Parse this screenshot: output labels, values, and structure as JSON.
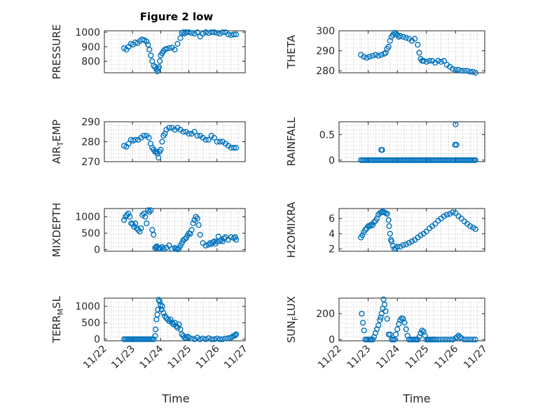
{
  "figure": {
    "title": "Figure 2 low",
    "background": "#ffffff",
    "marker_color": "#0072BD"
  },
  "chart_data": [
    {
      "type": "scatter",
      "marker": "circle",
      "ylabel": "PRESSURE",
      "ylabel_parts": [
        "PRESSURE"
      ],
      "xlim": [
        0,
        5
      ],
      "ylim": [
        720,
        1010
      ],
      "yticks": [
        800,
        900,
        1000
      ],
      "yticklabels": [
        "800",
        "900",
        "1000"
      ],
      "xticks": [
        0,
        1,
        2,
        3,
        4,
        5
      ],
      "xticklabels": [],
      "x": [
        0.7,
        0.78,
        0.86,
        0.94,
        1.02,
        1.1,
        1.18,
        1.26,
        1.34,
        1.42,
        1.5,
        1.55,
        1.6,
        1.65,
        1.7,
        1.75,
        1.8,
        1.85,
        1.88,
        1.91,
        1.94,
        1.97,
        2.0,
        2.05,
        2.1,
        2.15,
        2.2,
        2.3,
        2.4,
        2.5,
        2.6,
        2.7,
        2.75,
        2.8,
        2.85,
        2.9,
        3.0,
        3.1,
        3.2,
        3.3,
        3.4,
        3.5,
        3.6,
        3.7,
        3.8,
        3.9,
        4.0,
        4.1,
        4.2,
        4.3,
        4.4,
        4.5,
        4.6,
        4.68
      ],
      "y": [
        890,
        880,
        900,
        920,
        915,
        930,
        925,
        940,
        950,
        945,
        935,
        915,
        880,
        840,
        800,
        770,
        760,
        745,
        730,
        750,
        760,
        800,
        840,
        855,
        870,
        880,
        885,
        890,
        895,
        880,
        920,
        960,
        995,
        1000,
        990,
        1000,
        1000,
        995,
        990,
        1000,
        970,
        990,
        1000,
        995,
        1000,
        1000,
        995,
        990,
        1000,
        1000,
        985,
        980,
        985,
        985
      ]
    },
    {
      "type": "scatter",
      "marker": "circle",
      "ylabel": "THETA",
      "ylabel_parts": [
        "THETA"
      ],
      "xlim": [
        0,
        5
      ],
      "ylim": [
        279,
        300
      ],
      "yticks": [
        280,
        290,
        300
      ],
      "yticklabels": [
        "280",
        "290",
        "300"
      ],
      "xticks": [
        0,
        1,
        2,
        3,
        4,
        5
      ],
      "xticklabels": [],
      "x": [
        0.75,
        0.85,
        0.95,
        1.05,
        1.15,
        1.25,
        1.35,
        1.45,
        1.55,
        1.6,
        1.65,
        1.7,
        1.75,
        1.8,
        1.85,
        1.9,
        1.95,
        2.0,
        2.05,
        2.1,
        2.2,
        2.3,
        2.4,
        2.5,
        2.6,
        2.7,
        2.75,
        2.8,
        2.85,
        2.9,
        3.0,
        3.1,
        3.2,
        3.3,
        3.4,
        3.5,
        3.6,
        3.7,
        3.8,
        3.9,
        4.0,
        4.1,
        4.2,
        4.3,
        4.4,
        4.5,
        4.6,
        4.68
      ],
      "y": [
        288,
        287,
        286.5,
        287,
        287.5,
        288,
        287.5,
        288,
        288.5,
        289,
        291,
        292,
        295,
        297,
        298,
        299,
        298.5,
        298,
        297,
        297.5,
        297,
        296.5,
        296,
        295,
        296,
        293,
        289,
        286,
        285,
        285,
        284.5,
        285,
        285,
        284,
        285,
        284.5,
        285,
        283,
        282,
        281,
        280.5,
        280.5,
        280,
        280,
        280,
        279.5,
        279.5,
        279
      ]
    },
    {
      "type": "scatter",
      "marker": "circle",
      "ylabel": "AIR_TEMP",
      "ylabel_parts": [
        "AIR",
        "T",
        "EMP"
      ],
      "xlim": [
        0,
        5
      ],
      "ylim": [
        270,
        290
      ],
      "yticks": [
        270,
        280,
        290
      ],
      "yticklabels": [
        "270",
        "280",
        "290"
      ],
      "xticks": [
        0,
        1,
        2,
        3,
        4,
        5
      ],
      "xticklabels": [],
      "x": [
        0.7,
        0.78,
        0.86,
        0.94,
        1.02,
        1.1,
        1.2,
        1.3,
        1.4,
        1.5,
        1.58,
        1.64,
        1.7,
        1.75,
        1.8,
        1.85,
        1.88,
        1.92,
        1.96,
        2.0,
        2.05,
        2.1,
        2.15,
        2.2,
        2.3,
        2.4,
        2.5,
        2.6,
        2.7,
        2.8,
        2.9,
        3.0,
        3.1,
        3.2,
        3.3,
        3.4,
        3.5,
        3.6,
        3.7,
        3.8,
        3.9,
        4.0,
        4.1,
        4.2,
        4.3,
        4.4,
        4.5,
        4.6,
        4.68
      ],
      "y": [
        278,
        277.5,
        279,
        281,
        280.5,
        281,
        281,
        282,
        283,
        283,
        282,
        279,
        277,
        276,
        275,
        275,
        274,
        272,
        275,
        276,
        280,
        283,
        284,
        286,
        287,
        287,
        286,
        287,
        286,
        285,
        285,
        284,
        284,
        285,
        283,
        283,
        282,
        281,
        281,
        283,
        282,
        280,
        280,
        280,
        279,
        278,
        277,
        277,
        277
      ]
    },
    {
      "type": "scatter",
      "marker": "circle",
      "ylabel": "RAINFALL",
      "ylabel_parts": [
        "RAINFALL"
      ],
      "xlim": [
        0,
        5
      ],
      "ylim": [
        -0.03,
        0.75
      ],
      "yticks": [
        0,
        0.5
      ],
      "yticklabels": [
        "0",
        "0.5"
      ],
      "xticks": [
        0,
        1,
        2,
        3,
        4,
        5
      ],
      "xticklabels": [],
      "x": [
        0.75,
        0.8,
        0.85,
        0.9,
        0.95,
        1.0,
        1.05,
        1.1,
        1.15,
        1.2,
        1.25,
        1.3,
        1.35,
        1.4,
        1.45,
        1.5,
        1.55,
        1.6,
        1.65,
        1.7,
        1.75,
        1.8,
        1.85,
        1.9,
        1.95,
        2.0,
        2.05,
        2.1,
        2.15,
        2.2,
        2.25,
        2.3,
        2.35,
        2.4,
        2.45,
        2.5,
        2.55,
        2.6,
        2.65,
        2.7,
        2.75,
        2.8,
        2.85,
        2.9,
        2.95,
        3.0,
        3.05,
        3.1,
        3.15,
        3.2,
        3.25,
        3.3,
        3.35,
        3.4,
        3.45,
        3.5,
        3.55,
        3.6,
        3.65,
        3.7,
        3.75,
        3.8,
        3.85,
        3.9,
        3.95,
        4.0,
        4.05,
        4.1,
        4.15,
        4.2,
        4.25,
        4.3,
        4.35,
        4.4,
        4.45,
        4.5,
        4.55,
        4.6,
        4.65,
        4.68,
        1.45,
        1.48,
        3.98,
        4.0,
        4.03
      ],
      "y": [
        0,
        0,
        0,
        0,
        0,
        0,
        0,
        0,
        0,
        0,
        0,
        0,
        0,
        0,
        0,
        0,
        0,
        0,
        0,
        0,
        0,
        0,
        0,
        0,
        0,
        0,
        0,
        0,
        0,
        0,
        0,
        0,
        0,
        0,
        0,
        0,
        0,
        0,
        0,
        0,
        0,
        0,
        0,
        0,
        0,
        0,
        0,
        0,
        0,
        0,
        0,
        0,
        0,
        0,
        0,
        0,
        0,
        0,
        0,
        0,
        0,
        0,
        0,
        0,
        0,
        0,
        0,
        0,
        0,
        0,
        0,
        0,
        0,
        0,
        0,
        0,
        0,
        0,
        0,
        0,
        0.2,
        0.2,
        0.3,
        0.7,
        0.3
      ]
    },
    {
      "type": "scatter",
      "marker": "circle",
      "ylabel": "MIXDEPTH",
      "ylabel_parts": [
        "MIXDEPTH"
      ],
      "xlim": [
        0,
        5
      ],
      "ylim": [
        -50,
        1250
      ],
      "yticks": [
        0,
        500,
        1000
      ],
      "yticklabels": [
        "0",
        "500",
        "1000"
      ],
      "xticks": [
        0,
        1,
        2,
        3,
        4,
        5
      ],
      "xticklabels": [],
      "x": [
        0.7,
        0.75,
        0.8,
        0.85,
        0.9,
        0.95,
        1.0,
        1.05,
        1.1,
        1.15,
        1.2,
        1.25,
        1.3,
        1.35,
        1.4,
        1.45,
        1.5,
        1.55,
        1.6,
        1.65,
        1.7,
        1.75,
        1.8,
        1.83,
        1.86,
        1.9,
        1.95,
        2.0,
        2.05,
        2.1,
        2.2,
        2.3,
        2.4,
        2.5,
        2.55,
        2.6,
        2.65,
        2.7,
        2.75,
        2.8,
        2.85,
        2.9,
        2.95,
        3.0,
        3.05,
        3.1,
        3.15,
        3.2,
        3.25,
        3.3,
        3.35,
        3.4,
        3.5,
        3.6,
        3.7,
        3.75,
        3.8,
        3.85,
        3.9,
        3.95,
        4.0,
        4.05,
        4.1,
        4.15,
        4.2,
        4.25,
        4.3,
        4.4,
        4.5,
        4.6,
        4.65,
        4.68
      ],
      "y": [
        900,
        1000,
        1050,
        1100,
        1000,
        800,
        780,
        700,
        800,
        650,
        600,
        550,
        650,
        1050,
        1100,
        1000,
        800,
        1200,
        1150,
        1200,
        600,
        450,
        50,
        80,
        100,
        30,
        50,
        20,
        80,
        30,
        60,
        130,
        20,
        50,
        30,
        10,
        40,
        120,
        200,
        280,
        320,
        350,
        430,
        500,
        480,
        600,
        800,
        900,
        1000,
        950,
        750,
        450,
        200,
        120,
        150,
        200,
        170,
        220,
        250,
        180,
        240,
        400,
        260,
        300,
        250,
        340,
        380,
        300,
        380,
        350,
        380,
        300
      ]
    },
    {
      "type": "scatter",
      "marker": "circle",
      "ylabel": "H2OMIXRA",
      "ylabel_parts": [
        "H2OMIXRA"
      ],
      "xlim": [
        0,
        5
      ],
      "ylim": [
        1.7,
        7.3
      ],
      "yticks": [
        2,
        4,
        6
      ],
      "yticklabels": [
        "2",
        "4",
        "6"
      ],
      "xticks": [
        0,
        1,
        2,
        3,
        4,
        5
      ],
      "xticklabels": [],
      "x": [
        0.75,
        0.8,
        0.85,
        0.9,
        0.95,
        1.0,
        1.05,
        1.1,
        1.15,
        1.2,
        1.25,
        1.3,
        1.35,
        1.4,
        1.45,
        1.5,
        1.55,
        1.6,
        1.65,
        1.7,
        1.72,
        1.75,
        1.78,
        1.8,
        1.85,
        1.9,
        1.95,
        2.0,
        2.1,
        2.2,
        2.3,
        2.4,
        2.5,
        2.6,
        2.7,
        2.8,
        2.9,
        3.0,
        3.1,
        3.2,
        3.3,
        3.4,
        3.5,
        3.6,
        3.7,
        3.8,
        3.9,
        4.0,
        4.1,
        4.2,
        4.3,
        4.4,
        4.5,
        4.6,
        4.68
      ],
      "y": [
        3.5,
        3.8,
        4.2,
        4.5,
        4.7,
        5.0,
        5.0,
        5.2,
        5.1,
        5.5,
        5.7,
        6.0,
        6.5,
        6.7,
        6.8,
        6.9,
        6.8,
        6.7,
        6.6,
        5.8,
        5.0,
        4.0,
        3.2,
        3.0,
        2.4,
        2.0,
        2.1,
        2.3,
        2.3,
        2.5,
        2.6,
        2.8,
        3.0,
        3.2,
        3.5,
        3.8,
        4.0,
        4.3,
        4.7,
        5.0,
        5.3,
        5.7,
        6.0,
        6.3,
        6.5,
        6.6,
        6.8,
        6.7,
        6.3,
        6.0,
        5.6,
        5.3,
        5.0,
        4.8,
        4.6
      ]
    },
    {
      "type": "scatter",
      "marker": "circle",
      "ylabel": "TERR_MSL",
      "ylabel_parts": [
        "TERR",
        "M",
        "SL"
      ],
      "xlim": [
        0,
        5
      ],
      "ylim": [
        -50,
        1250
      ],
      "yticks": [
        0,
        500,
        1000
      ],
      "yticklabels": [
        "0",
        "500",
        "1000"
      ],
      "xticks": [
        0,
        1,
        2,
        3,
        4,
        5
      ],
      "xticklabels": [
        "11/22",
        "11/23",
        "11/24",
        "11/25",
        "11/26",
        "11/27"
      ],
      "x": [
        0.7,
        0.75,
        0.8,
        0.85,
        0.9,
        0.95,
        1.0,
        1.05,
        1.1,
        1.15,
        1.2,
        1.25,
        1.3,
        1.35,
        1.4,
        1.45,
        1.5,
        1.55,
        1.6,
        1.65,
        1.7,
        1.75,
        1.8,
        1.82,
        1.85,
        1.88,
        1.9,
        1.93,
        1.96,
        2.0,
        2.03,
        2.06,
        2.1,
        2.15,
        2.2,
        2.25,
        2.3,
        2.35,
        2.4,
        2.45,
        2.5,
        2.55,
        2.6,
        2.65,
        2.7,
        2.75,
        2.8,
        2.85,
        2.9,
        2.95,
        3.0,
        3.1,
        3.2,
        3.3,
        3.4,
        3.5,
        3.6,
        3.7,
        3.8,
        3.9,
        4.0,
        4.1,
        4.2,
        4.3,
        4.4,
        4.5,
        4.55,
        4.6,
        4.65,
        4.68
      ],
      "y": [
        0,
        0,
        0,
        0,
        0,
        0,
        0,
        0,
        0,
        0,
        0,
        0,
        0,
        0,
        0,
        0,
        0,
        0,
        0,
        0,
        0,
        0,
        100,
        300,
        600,
        750,
        900,
        1200,
        1150,
        1050,
        900,
        1000,
        800,
        700,
        650,
        600,
        550,
        600,
        500,
        450,
        500,
        400,
        350,
        450,
        300,
        150,
        100,
        50,
        30,
        80,
        50,
        20,
        0,
        50,
        0,
        20,
        0,
        30,
        0,
        0,
        20,
        0,
        0,
        20,
        30,
        50,
        80,
        100,
        120,
        150
      ]
    },
    {
      "type": "scatter",
      "marker": "circle",
      "ylabel": "SUN_FLUX",
      "ylabel_parts": [
        "SUN",
        "F",
        "LUX"
      ],
      "xlim": [
        0,
        5
      ],
      "ylim": [
        -10,
        320
      ],
      "yticks": [
        0,
        200
      ],
      "yticklabels": [
        "0",
        "200"
      ],
      "xticks": [
        0,
        1,
        2,
        3,
        4,
        5
      ],
      "xticklabels": [
        "11/22",
        "11/23",
        "11/24",
        "11/25",
        "11/26",
        "11/27"
      ],
      "x": [
        0.78,
        0.82,
        0.86,
        0.9,
        0.95,
        1.0,
        1.05,
        1.1,
        1.15,
        1.2,
        1.25,
        1.3,
        1.35,
        1.4,
        1.43,
        1.46,
        1.5,
        1.53,
        1.56,
        1.6,
        1.65,
        1.7,
        1.75,
        1.8,
        1.85,
        1.9,
        1.95,
        2.0,
        2.05,
        2.1,
        2.15,
        2.2,
        2.25,
        2.3,
        2.35,
        2.4,
        2.45,
        2.5,
        2.55,
        2.6,
        2.65,
        2.7,
        2.75,
        2.8,
        2.85,
        2.9,
        2.95,
        3.0,
        3.05,
        3.1,
        3.15,
        3.2,
        3.25,
        3.3,
        3.4,
        3.5,
        3.6,
        3.7,
        3.8,
        3.9,
        4.0,
        4.05,
        4.1,
        4.15,
        4.2,
        4.3,
        4.4,
        4.5,
        4.6,
        4.68
      ],
      "y": [
        200,
        130,
        70,
        0,
        0,
        0,
        0,
        0,
        0,
        20,
        50,
        80,
        110,
        150,
        170,
        200,
        240,
        310,
        270,
        220,
        160,
        40,
        40,
        0,
        0,
        0,
        40,
        80,
        120,
        150,
        165,
        160,
        130,
        80,
        30,
        0,
        0,
        0,
        0,
        0,
        0,
        0,
        20,
        50,
        70,
        60,
        30,
        0,
        0,
        0,
        0,
        0,
        0,
        0,
        0,
        0,
        0,
        0,
        0,
        0,
        10,
        20,
        30,
        20,
        10,
        0,
        0,
        0,
        0,
        0
      ]
    }
  ],
  "xlabels": [
    "Time",
    "Time"
  ]
}
